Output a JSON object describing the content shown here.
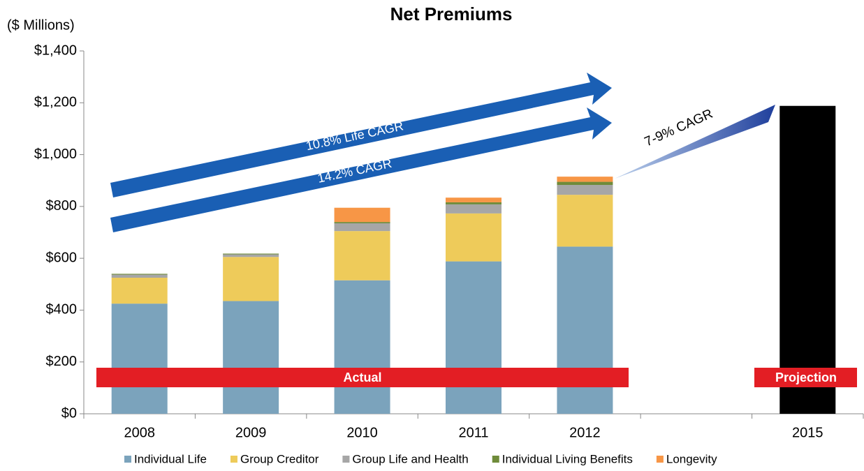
{
  "chart_data": {
    "type": "bar",
    "stacked": true,
    "title": "Net Premiums",
    "y_unit_label": "($ Millions)",
    "categories": [
      "2008",
      "2009",
      "2010",
      "2011",
      "2012",
      null,
      "2015"
    ],
    "series": [
      {
        "name": "Individual Life",
        "color": "#7ba3bc",
        "values": [
          425,
          435,
          515,
          588,
          645,
          null,
          null
        ]
      },
      {
        "name": "Group Creditor",
        "color": "#eecb5a",
        "values": [
          100,
          170,
          190,
          185,
          200,
          null,
          null
        ]
      },
      {
        "name": "Group Life and Health",
        "color": "#a6a6a6",
        "values": [
          12,
          10,
          30,
          35,
          38,
          null,
          null
        ]
      },
      {
        "name": "Individual Living Benefits",
        "color": "#6f8b3a",
        "values": [
          3,
          3,
          5,
          8,
          12,
          null,
          null
        ]
      },
      {
        "name": "Longevity",
        "color": "#f79646",
        "values": [
          0,
          0,
          55,
          18,
          20,
          null,
          null
        ]
      }
    ],
    "projection": {
      "category_index": 6,
      "value": 1188,
      "color": "#000000"
    },
    "ylim": [
      0,
      1400
    ],
    "yticks": [
      {
        "value": 0,
        "label": "$0"
      },
      {
        "value": 200,
        "label": "$200"
      },
      {
        "value": 400,
        "label": "$400"
      },
      {
        "value": 600,
        "label": "$600"
      },
      {
        "value": 800,
        "label": "$800"
      },
      {
        "value": 1000,
        "label": "$1,000"
      },
      {
        "value": 1200,
        "label": "$1,200"
      },
      {
        "value": 1400,
        "label": "$1,400"
      }
    ],
    "grid": false,
    "legend": "bottom",
    "annotations": {
      "life_cagr": "10.8% Life CAGR",
      "cagr": "14.2% CAGR",
      "projected_cagr": "7-9% CAGR",
      "actual": "Actual",
      "projection": "Projection"
    }
  }
}
